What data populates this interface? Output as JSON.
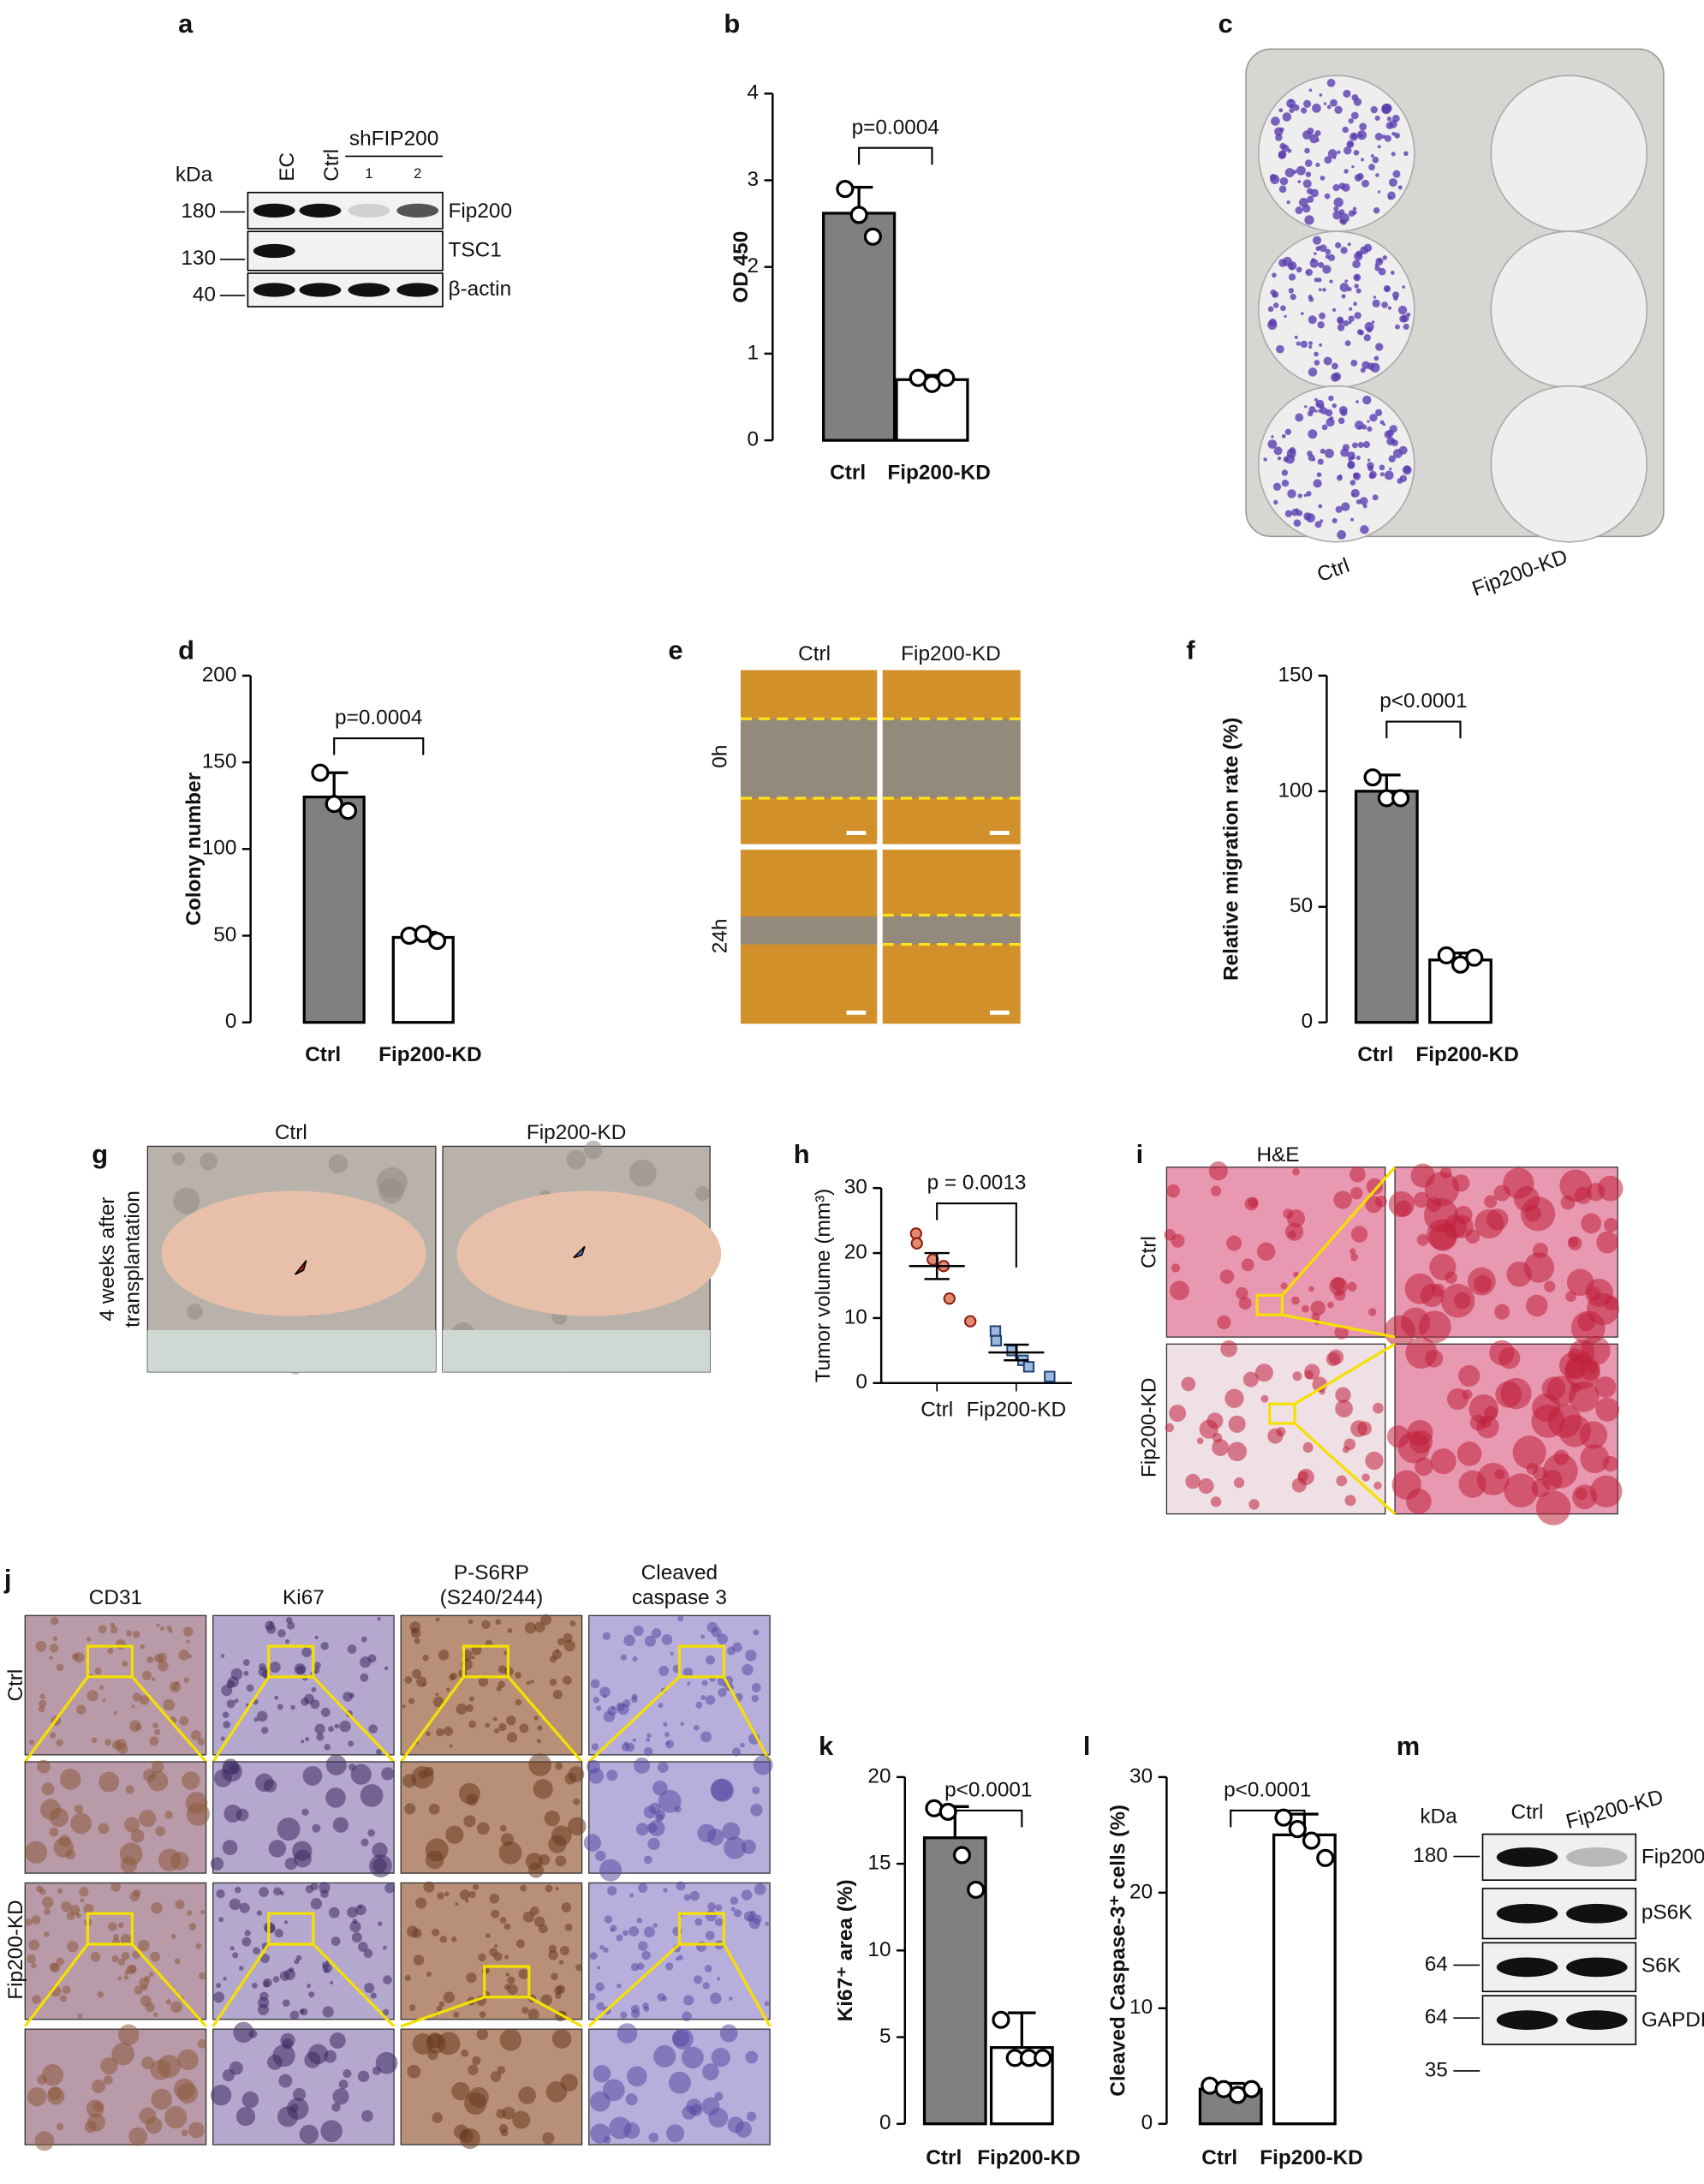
{
  "panel_labels": [
    "a",
    "b",
    "c",
    "d",
    "e",
    "f",
    "g",
    "h",
    "i",
    "j",
    "k",
    "l",
    "m"
  ],
  "blot_a": {
    "kda": "kDa",
    "lanes": [
      "EC",
      "Ctrl"
    ],
    "group": "shFIP200",
    "sublanes": [
      "1",
      "2"
    ],
    "markers": [
      180,
      130,
      40
    ],
    "bands": [
      "Fip200",
      "TSC1",
      "β-actin"
    ]
  },
  "plate_c": {
    "labels": [
      "Ctrl",
      "Fip200-KD"
    ]
  },
  "scratch_e": {
    "columns": [
      "Ctrl",
      "Fip200-KD"
    ],
    "rows": [
      "0h",
      "24h"
    ]
  },
  "mice_g": {
    "columns": [
      "Ctrl",
      "Fip200-KD"
    ],
    "side_label": [
      "4 weeks after",
      "transplantation"
    ]
  },
  "he_i": {
    "title": "H&E",
    "rows": [
      "Ctrl",
      "Fip200-KD"
    ]
  },
  "ihc_j": {
    "columns": [
      [
        "CD31"
      ],
      [
        "Ki67"
      ],
      [
        "P-S6RP",
        "(S240/244)"
      ],
      [
        "Cleaved",
        "caspase 3"
      ]
    ],
    "rows": [
      "Ctrl",
      "Fip200-KD"
    ]
  },
  "blot_m": {
    "kda": "kDa",
    "lanes": [
      "Ctrl",
      "Fip200-KD"
    ],
    "markers": [
      180,
      64,
      64,
      35
    ],
    "bands": [
      "Fip200",
      "pS6K",
      "S6K",
      "GAPDH"
    ]
  },
  "chart_data": [
    {
      "type": "bar",
      "ylabel": "OD 450",
      "categories": [
        "Ctrl",
        "Fip200-KD"
      ],
      "values": [
        2.62,
        0.7
      ],
      "errors": [
        0.3,
        0.05
      ],
      "points": [
        [
          2.9,
          2.6,
          2.35
        ],
        [
          0.72,
          0.65,
          0.72
        ]
      ],
      "colors": [
        "#808080",
        "#ffffff"
      ],
      "ylim": [
        0,
        4
      ],
      "yticks": [
        0,
        1,
        2,
        3,
        4
      ],
      "annotation": "p=0.0004"
    },
    {
      "type": "bar",
      "ylabel": "Colony number",
      "categories": [
        "Ctrl",
        "Fip200-KD"
      ],
      "values": [
        130,
        49
      ],
      "errors": [
        14,
        3
      ],
      "points": [
        [
          144,
          126,
          122
        ],
        [
          50,
          51,
          47
        ]
      ],
      "colors": [
        "#808080",
        "#ffffff"
      ],
      "ylim": [
        0,
        200
      ],
      "yticks": [
        0,
        50,
        100,
        150,
        200
      ],
      "annotation": "p=0.0004"
    },
    {
      "type": "bar",
      "ylabel": "Relative migration rate (%)",
      "categories": [
        "Ctrl",
        "Fip200-KD"
      ],
      "values": [
        100,
        27
      ],
      "errors": [
        7,
        3
      ],
      "points": [
        [
          106,
          97,
          97
        ],
        [
          29,
          25,
          28
        ]
      ],
      "colors": [
        "#808080",
        "#ffffff"
      ],
      "ylim": [
        0,
        150
      ],
      "yticks": [
        0,
        50,
        100,
        150
      ],
      "annotation": "p<0.0001"
    },
    {
      "type": "dot",
      "ylabel": "Tumor volume (mm³)",
      "categories": [
        "Ctrl",
        "Fip200-KD"
      ],
      "values": [
        18,
        4.7
      ],
      "errors": [
        2,
        1.2
      ],
      "points": [
        [
          23,
          21.5,
          19,
          18,
          13,
          9.5
        ],
        [
          8,
          6.5,
          5,
          3.5,
          2.5,
          1
        ]
      ],
      "colors": [
        "#e08a70",
        "#9db8d8"
      ],
      "markers": [
        "circle",
        "square"
      ],
      "ylim": [
        0,
        30
      ],
      "yticks": [
        0,
        10,
        20,
        30
      ],
      "annotation": "p = 0.0013"
    },
    {
      "type": "bar",
      "ylabel": "Ki67⁺ area (%)",
      "categories": [
        "Ctrl",
        "Fip200-KD"
      ],
      "values": [
        16.5,
        4.4
      ],
      "errors": [
        1.8,
        2
      ],
      "points": [
        [
          18.2,
          18,
          15.5,
          13.5
        ],
        [
          6,
          3.8,
          3.8,
          3.8
        ]
      ],
      "colors": [
        "#808080",
        "#ffffff"
      ],
      "ylim": [
        0,
        20
      ],
      "yticks": [
        0,
        5,
        10,
        15,
        20
      ],
      "annotation": "p<0.0001"
    },
    {
      "type": "bar",
      "ylabel": "Cleaved Caspase-3⁺ cells (%)",
      "categories": [
        "Ctrl",
        "Fip200-KD"
      ],
      "values": [
        3,
        25
      ],
      "errors": [
        0.5,
        1.8
      ],
      "points": [
        [
          3.3,
          3,
          2.5,
          3
        ],
        [
          26.5,
          25.5,
          24.5,
          23
        ]
      ],
      "colors": [
        "#808080",
        "#ffffff"
      ],
      "ylim": [
        0,
        30
      ],
      "yticks": [
        0,
        10,
        20,
        30
      ],
      "annotation": "p<0.0001"
    }
  ]
}
